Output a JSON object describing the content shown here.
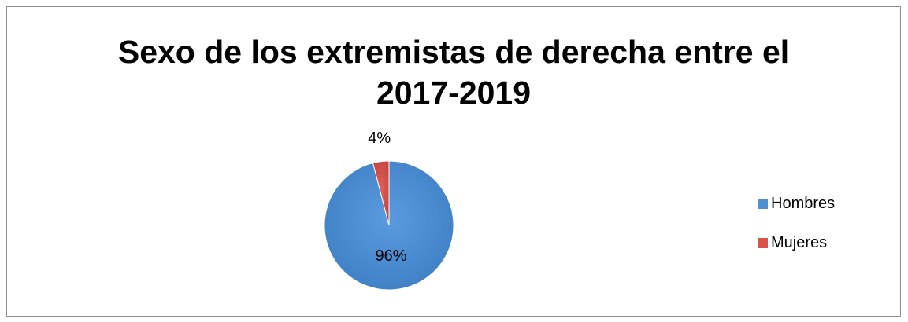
{
  "chart_data": {
    "type": "pie",
    "title": "Sexo de los extremistas de derecha entre el 2017-2019",
    "title_lines": [
      "Sexo de los extremistas de derecha entre el",
      "2017-2019"
    ],
    "categories": [
      "Hombres",
      "Mujeres"
    ],
    "values": [
      96,
      4
    ],
    "data_labels": [
      "96%",
      "4%"
    ],
    "colors": [
      "#4F8FD4",
      "#D9534C"
    ],
    "legend_position": "right"
  }
}
